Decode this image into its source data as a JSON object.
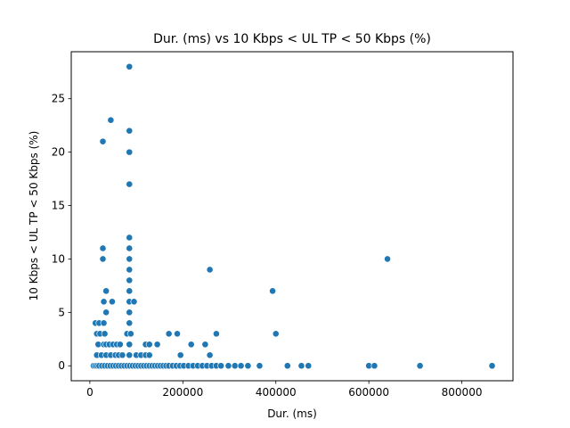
{
  "chart_data": {
    "type": "scatter",
    "title": "Dur. (ms) vs 10 Kbps < UL TP < 50 Kbps (%)",
    "xlabel": "Dur. (ms)",
    "ylabel": "10 Kbps < UL TP < 50 Kbps (%)",
    "xlim": [
      -40000,
      910000
    ],
    "ylim": [
      -1.4,
      29.4
    ],
    "xticks": [
      0,
      200000,
      400000,
      600000,
      800000
    ],
    "xtick_labels": [
      "0",
      "200000",
      "400000",
      "600000",
      "800000"
    ],
    "yticks": [
      0,
      5,
      10,
      15,
      20,
      25
    ],
    "ytick_labels": [
      "0",
      "5",
      "10",
      "15",
      "20",
      "25"
    ],
    "grid": false,
    "series": [
      {
        "color": "#1f77b4",
        "points": [
          [
            85000,
            28
          ],
          [
            45000,
            23
          ],
          [
            85000,
            22
          ],
          [
            28000,
            21
          ],
          [
            85000,
            20
          ],
          [
            85000,
            17
          ],
          [
            85000,
            12
          ],
          [
            28000,
            11
          ],
          [
            85000,
            11
          ],
          [
            28000,
            10
          ],
          [
            85000,
            10
          ],
          [
            640000,
            10
          ],
          [
            85000,
            9
          ],
          [
            258000,
            9
          ],
          [
            85000,
            8
          ],
          [
            35000,
            7
          ],
          [
            85000,
            7
          ],
          [
            393000,
            7
          ],
          [
            30000,
            6
          ],
          [
            48000,
            6
          ],
          [
            85000,
            6
          ],
          [
            95000,
            6
          ],
          [
            35000,
            5
          ],
          [
            85000,
            5
          ],
          [
            12000,
            4
          ],
          [
            20000,
            4
          ],
          [
            30000,
            4
          ],
          [
            85000,
            4
          ],
          [
            15000,
            3
          ],
          [
            22000,
            3
          ],
          [
            32000,
            3
          ],
          [
            80000,
            3
          ],
          [
            88000,
            3
          ],
          [
            170000,
            3
          ],
          [
            188000,
            3
          ],
          [
            272000,
            3
          ],
          [
            400000,
            3
          ],
          [
            18000,
            2
          ],
          [
            30000,
            2
          ],
          [
            35000,
            2
          ],
          [
            42000,
            2
          ],
          [
            50000,
            2
          ],
          [
            58000,
            2
          ],
          [
            65000,
            2
          ],
          [
            85000,
            2
          ],
          [
            120000,
            2
          ],
          [
            128000,
            2
          ],
          [
            145000,
            2
          ],
          [
            218000,
            2
          ],
          [
            248000,
            2
          ],
          [
            15000,
            1
          ],
          [
            25000,
            1
          ],
          [
            35000,
            1
          ],
          [
            45000,
            1
          ],
          [
            55000,
            1
          ],
          [
            62000,
            1
          ],
          [
            70000,
            1
          ],
          [
            85000,
            1
          ],
          [
            100000,
            1
          ],
          [
            110000,
            1
          ],
          [
            120000,
            1
          ],
          [
            128000,
            1
          ],
          [
            195000,
            1
          ],
          [
            258000,
            1
          ],
          [
            8000,
            0
          ],
          [
            12000,
            0
          ],
          [
            16000,
            0
          ],
          [
            20000,
            0
          ],
          [
            26000,
            0
          ],
          [
            32000,
            0
          ],
          [
            38000,
            0
          ],
          [
            44000,
            0
          ],
          [
            50000,
            0
          ],
          [
            56000,
            0
          ],
          [
            62000,
            0
          ],
          [
            68000,
            0
          ],
          [
            74000,
            0
          ],
          [
            80000,
            0
          ],
          [
            86000,
            0
          ],
          [
            92000,
            0
          ],
          [
            98000,
            0
          ],
          [
            104000,
            0
          ],
          [
            110000,
            0
          ],
          [
            116000,
            0
          ],
          [
            122000,
            0
          ],
          [
            128000,
            0
          ],
          [
            134000,
            0
          ],
          [
            140000,
            0
          ],
          [
            146000,
            0
          ],
          [
            152000,
            0
          ],
          [
            158000,
            0
          ],
          [
            164000,
            0
          ],
          [
            170000,
            0
          ],
          [
            178000,
            0
          ],
          [
            186000,
            0
          ],
          [
            194000,
            0
          ],
          [
            202000,
            0
          ],
          [
            212000,
            0
          ],
          [
            222000,
            0
          ],
          [
            232000,
            0
          ],
          [
            242000,
            0
          ],
          [
            252000,
            0
          ],
          [
            262000,
            0
          ],
          [
            272000,
            0
          ],
          [
            282000,
            0
          ],
          [
            298000,
            0
          ],
          [
            312000,
            0
          ],
          [
            325000,
            0
          ],
          [
            340000,
            0
          ],
          [
            365000,
            0
          ],
          [
            425000,
            0
          ],
          [
            455000,
            0
          ],
          [
            470000,
            0
          ],
          [
            600000,
            0
          ],
          [
            612000,
            0
          ],
          [
            710000,
            0
          ],
          [
            865000,
            0
          ]
        ]
      }
    ]
  }
}
